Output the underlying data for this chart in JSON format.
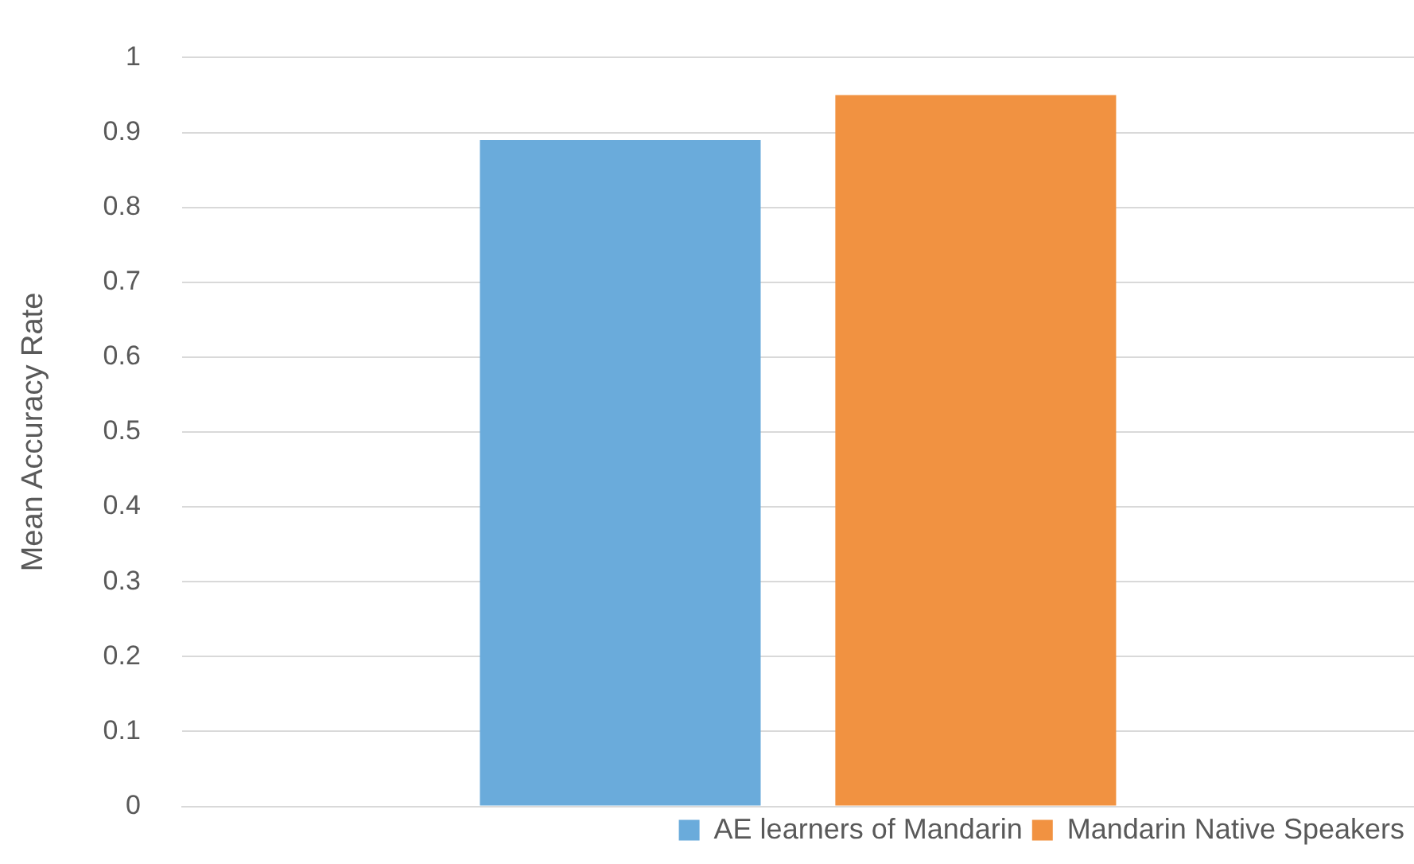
{
  "chart_data": {
    "type": "bar",
    "ylabel": "Mean Accuracy Rate",
    "categories": [
      null
    ],
    "series": [
      {
        "name": "AE learners of Mandarin",
        "color": "#6aabdb",
        "values": [
          0.89
        ]
      },
      {
        "name": "Mandarin Native Speakers",
        "color": "#f19241",
        "values": [
          0.95
        ]
      }
    ],
    "ylim": [
      0,
      1
    ],
    "yticks": [
      0,
      0.1,
      0.2,
      0.3,
      0.4,
      0.5,
      0.6,
      0.7,
      0.8,
      0.9,
      1
    ],
    "grid": "y",
    "legend": "bottom",
    "tick_labels": "y"
  }
}
